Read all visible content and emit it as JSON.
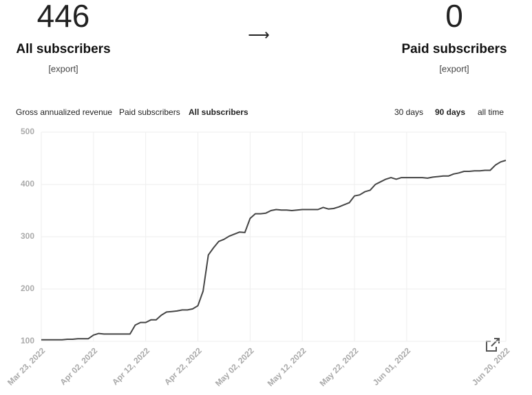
{
  "stats": {
    "left": {
      "value": "446",
      "label": "All subscribers",
      "export": "[export]"
    },
    "arrow": "⟶",
    "right": {
      "value": "0",
      "label": "Paid subscribers",
      "export": "[export]"
    }
  },
  "metric_tabs": [
    {
      "label": "Gross annualized revenue",
      "active": false
    },
    {
      "label": "Paid subscribers",
      "active": false
    },
    {
      "label": "All subscribers",
      "active": true
    }
  ],
  "range_tabs": [
    {
      "label": "30 days",
      "active": false
    },
    {
      "label": "90 days",
      "active": true
    },
    {
      "label": "all time",
      "active": false
    }
  ],
  "chart_data": {
    "type": "line",
    "x": [
      "2022-03-23",
      "2022-03-24",
      "2022-03-25",
      "2022-03-26",
      "2022-03-27",
      "2022-03-28",
      "2022-03-29",
      "2022-03-30",
      "2022-03-31",
      "2022-04-01",
      "2022-04-02",
      "2022-04-03",
      "2022-04-04",
      "2022-04-05",
      "2022-04-06",
      "2022-04-07",
      "2022-04-08",
      "2022-04-09",
      "2022-04-10",
      "2022-04-11",
      "2022-04-12",
      "2022-04-13",
      "2022-04-14",
      "2022-04-15",
      "2022-04-16",
      "2022-04-17",
      "2022-04-18",
      "2022-04-19",
      "2022-04-20",
      "2022-04-21",
      "2022-04-22",
      "2022-04-23",
      "2022-04-24",
      "2022-04-25",
      "2022-04-26",
      "2022-04-27",
      "2022-04-28",
      "2022-04-29",
      "2022-04-30",
      "2022-05-01",
      "2022-05-02",
      "2022-05-03",
      "2022-05-04",
      "2022-05-05",
      "2022-05-06",
      "2022-05-07",
      "2022-05-08",
      "2022-05-09",
      "2022-05-10",
      "2022-05-11",
      "2022-05-12",
      "2022-05-13",
      "2022-05-14",
      "2022-05-15",
      "2022-05-16",
      "2022-05-17",
      "2022-05-18",
      "2022-05-19",
      "2022-05-20",
      "2022-05-21",
      "2022-05-22",
      "2022-05-23",
      "2022-05-24",
      "2022-05-25",
      "2022-05-26",
      "2022-05-27",
      "2022-05-28",
      "2022-05-29",
      "2022-05-30",
      "2022-05-31",
      "2022-06-01",
      "2022-06-02",
      "2022-06-03",
      "2022-06-04",
      "2022-06-05",
      "2022-06-06",
      "2022-06-07",
      "2022-06-08",
      "2022-06-09",
      "2022-06-10",
      "2022-06-11",
      "2022-06-12",
      "2022-06-13",
      "2022-06-14",
      "2022-06-15",
      "2022-06-16",
      "2022-06-17",
      "2022-06-18",
      "2022-06-19",
      "2022-06-20"
    ],
    "series": [
      {
        "name": "All subscribers",
        "color": "#444444",
        "values": [
          103,
          103,
          103,
          103,
          103,
          104,
          104,
          105,
          105,
          105,
          112,
          115,
          114,
          114,
          114,
          114,
          114,
          114,
          131,
          136,
          136,
          141,
          141,
          150,
          156,
          157,
          158,
          160,
          160,
          162,
          168,
          196,
          265,
          279,
          291,
          295,
          301,
          305,
          309,
          308,
          335,
          344,
          344,
          345,
          350,
          352,
          351,
          351,
          350,
          351,
          352,
          352,
          352,
          352,
          356,
          353,
          354,
          357,
          361,
          365,
          378,
          380,
          386,
          389,
          400,
          405,
          410,
          413,
          410,
          413,
          413,
          413,
          413,
          413,
          412,
          414,
          415,
          416,
          416,
          420,
          422,
          425,
          425,
          426,
          426,
          427,
          427,
          437,
          443,
          446
        ]
      }
    ],
    "xlim": [
      "2022-03-23",
      "2022-06-20"
    ],
    "xticks": [
      {
        "value": "2022-03-23",
        "label": "Mar 23, 2022"
      },
      {
        "value": "2022-04-02",
        "label": "Apr 02, 2022"
      },
      {
        "value": "2022-04-12",
        "label": "Apr 12, 2022"
      },
      {
        "value": "2022-04-22",
        "label": "Apr 22, 2022"
      },
      {
        "value": "2022-05-02",
        "label": "May 02, 2022"
      },
      {
        "value": "2022-05-12",
        "label": "May 12, 2022"
      },
      {
        "value": "2022-05-22",
        "label": "May 22, 2022"
      },
      {
        "value": "2022-06-01",
        "label": "Jun 01, 2022"
      },
      {
        "value": "2022-06-20",
        "label": "Jun 20, 2022"
      }
    ],
    "ylim": [
      100,
      500
    ],
    "yticks": [
      100,
      200,
      300,
      400,
      500
    ],
    "grid": true
  }
}
